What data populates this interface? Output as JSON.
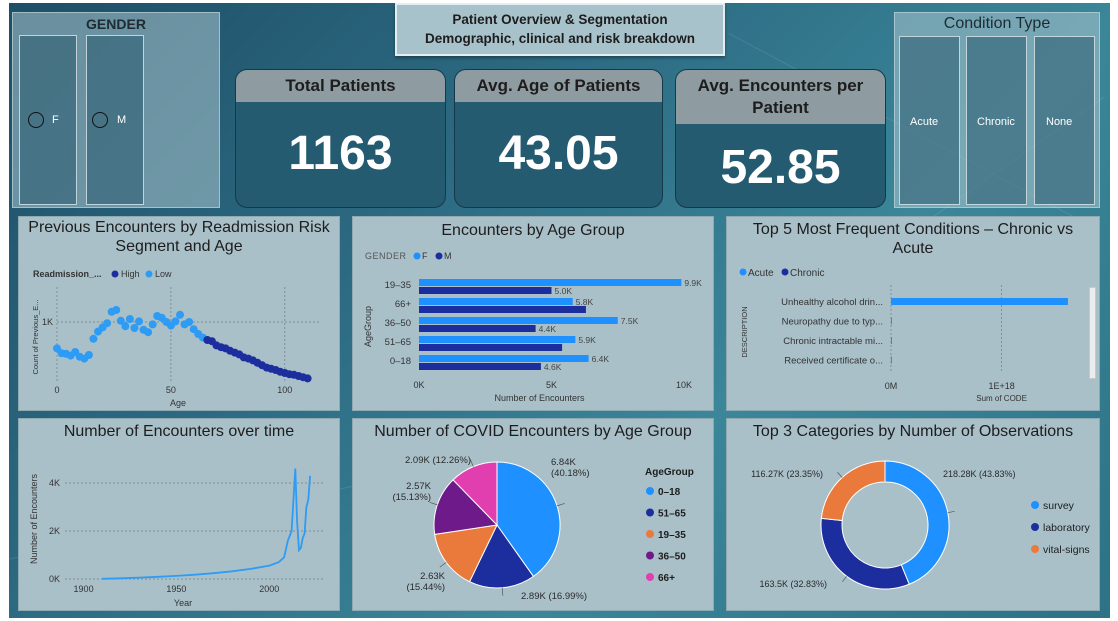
{
  "header": {
    "title": "Patient Overview & Segmentation",
    "subtitle": "Demographic, clinical and risk breakdown"
  },
  "gender_slicer": {
    "title": "GENDER",
    "options": [
      "F",
      "M"
    ]
  },
  "condition_slicer": {
    "title": "Condition Type",
    "options": [
      "Acute",
      "Chronic",
      "None"
    ]
  },
  "kpis": [
    {
      "label": "Total Patients",
      "value": "1163"
    },
    {
      "label": "Avg. Age of Patients",
      "value": "43.05"
    },
    {
      "label": "Avg. Encounters per Patient",
      "value": "52.85"
    }
  ],
  "chart_data": [
    {
      "id": "readmission_scatter",
      "type": "scatter",
      "title": "Previous Encounters by Readmission Risk Segment and Age",
      "legend_title": "Readmission_...",
      "xlabel": "Age",
      "ylabel": "Count of Previous_E...",
      "x_ticks": [
        "0",
        "50",
        "100"
      ],
      "y_ticks": [
        "1K"
      ],
      "xlim": [
        0,
        115
      ],
      "ylim": [
        0,
        1500
      ],
      "legend_position": "top-left",
      "grid": true,
      "colors": {
        "High": "#1c2e9e",
        "Low": "#2e9bf5"
      },
      "series": [
        {
          "name": "Low",
          "points": [
            [
              0,
              560
            ],
            [
              2,
              480
            ],
            [
              4,
              470
            ],
            [
              6,
              440
            ],
            [
              8,
              500
            ],
            [
              10,
              420
            ],
            [
              12,
              390
            ],
            [
              14,
              450
            ],
            [
              16,
              720
            ],
            [
              18,
              840
            ],
            [
              20,
              910
            ],
            [
              22,
              980
            ],
            [
              24,
              1170
            ],
            [
              26,
              1200
            ],
            [
              28,
              1020
            ],
            [
              30,
              930
            ],
            [
              32,
              1050
            ],
            [
              34,
              900
            ],
            [
              36,
              1010
            ],
            [
              38,
              870
            ],
            [
              40,
              830
            ],
            [
              42,
              960
            ],
            [
              44,
              1100
            ],
            [
              46,
              1070
            ],
            [
              48,
              1000
            ],
            [
              50,
              940
            ],
            [
              52,
              1010
            ],
            [
              54,
              1120
            ],
            [
              56,
              960
            ],
            [
              58,
              1000
            ],
            [
              60,
              880
            ],
            [
              62,
              800
            ],
            [
              64,
              740
            ]
          ]
        },
        {
          "name": "High",
          "points": [
            [
              66,
              700
            ],
            [
              68,
              680
            ],
            [
              70,
              610
            ],
            [
              72,
              580
            ],
            [
              74,
              560
            ],
            [
              76,
              520
            ],
            [
              78,
              490
            ],
            [
              80,
              460
            ],
            [
              82,
              410
            ],
            [
              84,
              390
            ],
            [
              86,
              360
            ],
            [
              88,
              320
            ],
            [
              90,
              280
            ],
            [
              92,
              240
            ],
            [
              94,
              220
            ],
            [
              96,
              200
            ],
            [
              98,
              170
            ],
            [
              100,
              150
            ],
            [
              102,
              130
            ],
            [
              104,
              120
            ],
            [
              106,
              100
            ],
            [
              108,
              80
            ],
            [
              110,
              60
            ]
          ]
        }
      ]
    },
    {
      "id": "age_group_bars",
      "type": "bar",
      "title": "Encounters by Age Group",
      "legend_title": "GENDER",
      "xlabel": "Number of Encounters",
      "ylabel": "AgeGroup",
      "x_ticks": [
        "0K",
        "5K",
        "10K"
      ],
      "xlim": [
        0,
        10000
      ],
      "legend_position": "top-left",
      "categories": [
        "19–35",
        "66+",
        "36–50",
        "51–65",
        "0–18"
      ],
      "series": [
        {
          "name": "F",
          "color": "#1e90ff",
          "values": [
            9900,
            5800,
            7500,
            5900,
            6400
          ],
          "labels": [
            "9.9K",
            "5.8K",
            "7.5K",
            "5.9K",
            "6.4K"
          ]
        },
        {
          "name": "M",
          "color": "#1c2e9e",
          "values": [
            5000,
            6300,
            4400,
            5400,
            4600
          ],
          "labels": [
            "5.0K",
            "",
            "4.4K",
            "",
            "4.6K"
          ]
        }
      ]
    },
    {
      "id": "top_conditions",
      "type": "bar",
      "title": "Top 5 Most Frequent Conditions – Chronic vs Acute",
      "xlabel": "Sum of CODE",
      "ylabel": "DESCRIPTION",
      "x_ticks": [
        "0M",
        "1E+18"
      ],
      "xlim": [
        0,
        1.7e+18
      ],
      "legend_position": "top-left",
      "categories": [
        "Unhealthy alcohol drin...",
        "Neuropathy due to typ...",
        "Chronic intractable mi...",
        "Received certificate o..."
      ],
      "series": [
        {
          "name": "Acute",
          "color": "#1e90ff",
          "values": [
            1.6e+18,
            5000000000000000.0,
            3000000000000000.0,
            3000000000000000.0
          ]
        },
        {
          "name": "Chronic",
          "color": "#1c2e9e",
          "values": [
            0,
            0,
            0,
            0
          ]
        }
      ]
    },
    {
      "id": "encounters_time",
      "type": "line",
      "title": "Number of Encounters over time",
      "xlabel": "Year",
      "ylabel": "Number of Encounters",
      "x_ticks": [
        "1900",
        "1950",
        "2000"
      ],
      "y_ticks": [
        "0K",
        "2K",
        "4K"
      ],
      "xlim": [
        1890,
        2030
      ],
      "ylim": [
        0,
        5000
      ],
      "grid": true,
      "series": [
        {
          "name": "Encounters",
          "color": "#2e9bf5",
          "points": [
            [
              1910,
              10
            ],
            [
              1920,
              30
            ],
            [
              1930,
              60
            ],
            [
              1940,
              90
            ],
            [
              1950,
              130
            ],
            [
              1960,
              180
            ],
            [
              1970,
              240
            ],
            [
              1980,
              320
            ],
            [
              1990,
              420
            ],
            [
              2000,
              560
            ],
            [
              2005,
              700
            ],
            [
              2008,
              900
            ],
            [
              2010,
              1600
            ],
            [
              2012,
              2000
            ],
            [
              2014,
              4600
            ],
            [
              2015,
              2400
            ],
            [
              2016,
              1200
            ],
            [
              2017,
              1300
            ],
            [
              2018,
              1700
            ],
            [
              2019,
              1900
            ],
            [
              2020,
              3000
            ],
            [
              2021,
              3300
            ],
            [
              2022,
              4300
            ]
          ]
        }
      ]
    },
    {
      "id": "covid_pie",
      "type": "pie",
      "title": "Number of COVID Encounters by Age Group",
      "legend_title": "AgeGroup",
      "legend_position": "right",
      "slices": [
        {
          "name": "0–18",
          "value": 6840,
          "label": "6.84K\n(40.18%)",
          "color": "#1e90ff"
        },
        {
          "name": "51–65",
          "value": 2890,
          "label": "2.89K (16.99%)",
          "color": "#1c2e9e"
        },
        {
          "name": "19–35",
          "value": 2630,
          "label": "2.63K\n(15.44%)",
          "color": "#ea7a3c"
        },
        {
          "name": "36–50",
          "value": 2570,
          "label": "2.57K\n(15.13%)",
          "color": "#6e1a8a"
        },
        {
          "name": "66+",
          "value": 2090,
          "label": "2.09K (12.26%)",
          "color": "#e13fb0"
        }
      ]
    },
    {
      "id": "observation_donut",
      "type": "pie",
      "title": "Top 3 Categories by Number of Observations",
      "legend_position": "right",
      "slices": [
        {
          "name": "survey",
          "value": 218280,
          "label": "218.28K (43.83%)",
          "color": "#1e90ff"
        },
        {
          "name": "laboratory",
          "value": 163500,
          "label": "163.5K (32.83%)",
          "color": "#1c2e9e"
        },
        {
          "name": "vital-signs",
          "value": 116270,
          "label": "116.27K (23.35%)",
          "color": "#ea7a3c"
        }
      ]
    }
  ]
}
